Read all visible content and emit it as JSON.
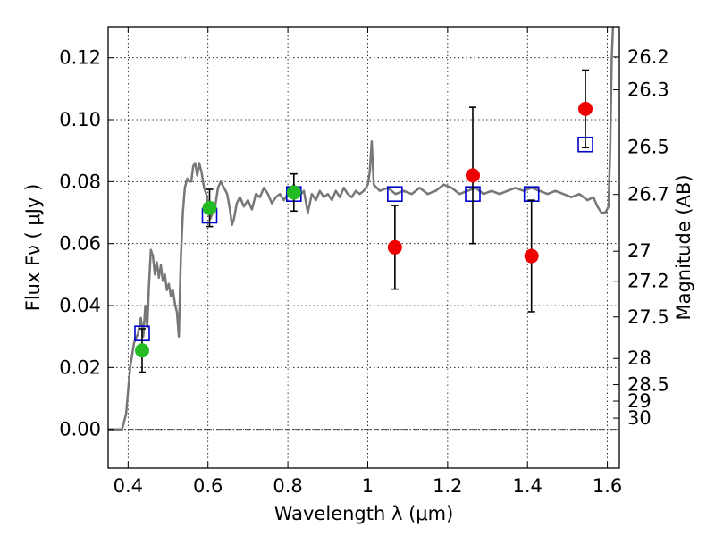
{
  "chart_data": {
    "type": "scatter",
    "xlabel": "Wavelength  λ (μm)",
    "ylabel_left": "Flux  Fν  ( μJy )",
    "ylabel_right": "Magnitude (AB)",
    "xlim": [
      0.35,
      1.63
    ],
    "ylim": [
      -0.0125,
      0.13
    ],
    "grid": true,
    "x_ticks": [
      {
        "value": 0.4,
        "label": "0.4"
      },
      {
        "value": 0.6,
        "label": "0.6"
      },
      {
        "value": 0.8,
        "label": "0.8"
      },
      {
        "value": 1.0,
        "label": "1"
      },
      {
        "value": 1.2,
        "label": "1.2"
      },
      {
        "value": 1.4,
        "label": "1.4"
      },
      {
        "value": 1.6,
        "label": "1.6"
      }
    ],
    "y_ticks": [
      {
        "value": 0.0,
        "label": "0.00"
      },
      {
        "value": 0.02,
        "label": "0.02"
      },
      {
        "value": 0.04,
        "label": "0.04"
      },
      {
        "value": 0.06,
        "label": "0.06"
      },
      {
        "value": 0.08,
        "label": "0.08"
      },
      {
        "value": 0.1,
        "label": "0.10"
      },
      {
        "value": 0.12,
        "label": "0.12"
      }
    ],
    "right_ticks": [
      {
        "mag": 26.2,
        "label": "26.2"
      },
      {
        "mag": 26.3,
        "label": "26.3"
      },
      {
        "mag": 26.5,
        "label": "26.5"
      },
      {
        "mag": 26.7,
        "label": "26.7"
      },
      {
        "mag": 27.0,
        "label": "27"
      },
      {
        "mag": 27.2,
        "label": "27.2"
      },
      {
        "mag": 27.5,
        "label": "27.5"
      },
      {
        "mag": 28.0,
        "label": "28"
      },
      {
        "mag": 28.5,
        "label": "28.5"
      },
      {
        "mag": 29.0,
        "label": "29"
      },
      {
        "mag": 30.0,
        "label": "30"
      }
    ],
    "series": [
      {
        "kind": "line",
        "color": "#777777",
        "points": [
          [
            0.35,
            0.0
          ],
          [
            0.385,
            0.0
          ],
          [
            0.395,
            0.005
          ],
          [
            0.405,
            0.02
          ],
          [
            0.415,
            0.028
          ],
          [
            0.425,
            0.031
          ],
          [
            0.432,
            0.036
          ],
          [
            0.438,
            0.03
          ],
          [
            0.443,
            0.04
          ],
          [
            0.448,
            0.033
          ],
          [
            0.452,
            0.046
          ],
          [
            0.457,
            0.058
          ],
          [
            0.462,
            0.056
          ],
          [
            0.467,
            0.05
          ],
          [
            0.472,
            0.054
          ],
          [
            0.477,
            0.049
          ],
          [
            0.482,
            0.053
          ],
          [
            0.487,
            0.048
          ],
          [
            0.492,
            0.05
          ],
          [
            0.497,
            0.045
          ],
          [
            0.502,
            0.047
          ],
          [
            0.507,
            0.043
          ],
          [
            0.512,
            0.045
          ],
          [
            0.518,
            0.04
          ],
          [
            0.522,
            0.038
          ],
          [
            0.527,
            0.03
          ],
          [
            0.532,
            0.055
          ],
          [
            0.537,
            0.07
          ],
          [
            0.542,
            0.078
          ],
          [
            0.548,
            0.081
          ],
          [
            0.553,
            0.08
          ],
          [
            0.558,
            0.08
          ],
          [
            0.563,
            0.085
          ],
          [
            0.568,
            0.086
          ],
          [
            0.573,
            0.082
          ],
          [
            0.578,
            0.086
          ],
          [
            0.584,
            0.083
          ],
          [
            0.59,
            0.078
          ],
          [
            0.596,
            0.076
          ],
          [
            0.6,
            0.073
          ],
          [
            0.606,
            0.068
          ],
          [
            0.612,
            0.07
          ],
          [
            0.618,
            0.072
          ],
          [
            0.625,
            0.078
          ],
          [
            0.632,
            0.08
          ],
          [
            0.64,
            0.078
          ],
          [
            0.648,
            0.076
          ],
          [
            0.655,
            0.071
          ],
          [
            0.66,
            0.066
          ],
          [
            0.665,
            0.068
          ],
          [
            0.672,
            0.073
          ],
          [
            0.68,
            0.075
          ],
          [
            0.69,
            0.072
          ],
          [
            0.7,
            0.074
          ],
          [
            0.71,
            0.071
          ],
          [
            0.72,
            0.076
          ],
          [
            0.73,
            0.075
          ],
          [
            0.74,
            0.078
          ],
          [
            0.75,
            0.076
          ],
          [
            0.76,
            0.073
          ],
          [
            0.77,
            0.075
          ],
          [
            0.78,
            0.076
          ],
          [
            0.79,
            0.074
          ],
          [
            0.8,
            0.076
          ],
          [
            0.815,
            0.079
          ],
          [
            0.825,
            0.075
          ],
          [
            0.84,
            0.077
          ],
          [
            0.85,
            0.07
          ],
          [
            0.86,
            0.076
          ],
          [
            0.87,
            0.074
          ],
          [
            0.88,
            0.077
          ],
          [
            0.89,
            0.075
          ],
          [
            0.9,
            0.076
          ],
          [
            0.91,
            0.074
          ],
          [
            0.92,
            0.077
          ],
          [
            0.93,
            0.075
          ],
          [
            0.94,
            0.078
          ],
          [
            0.95,
            0.076
          ],
          [
            0.96,
            0.075
          ],
          [
            0.97,
            0.077
          ],
          [
            0.98,
            0.076
          ],
          [
            0.99,
            0.077
          ],
          [
            1.0,
            0.079
          ],
          [
            1.005,
            0.083
          ],
          [
            1.01,
            0.093
          ],
          [
            1.015,
            0.079
          ],
          [
            1.03,
            0.077
          ],
          [
            1.05,
            0.078
          ],
          [
            1.07,
            0.076
          ],
          [
            1.09,
            0.077
          ],
          [
            1.11,
            0.076
          ],
          [
            1.13,
            0.078
          ],
          [
            1.15,
            0.076
          ],
          [
            1.17,
            0.077
          ],
          [
            1.19,
            0.079
          ],
          [
            1.21,
            0.078
          ],
          [
            1.23,
            0.076
          ],
          [
            1.25,
            0.077
          ],
          [
            1.27,
            0.078
          ],
          [
            1.29,
            0.076
          ],
          [
            1.31,
            0.077
          ],
          [
            1.33,
            0.076
          ],
          [
            1.35,
            0.077
          ],
          [
            1.37,
            0.078
          ],
          [
            1.39,
            0.077
          ],
          [
            1.41,
            0.078
          ],
          [
            1.43,
            0.077
          ],
          [
            1.45,
            0.076
          ],
          [
            1.47,
            0.077
          ],
          [
            1.49,
            0.076
          ],
          [
            1.51,
            0.075
          ],
          [
            1.53,
            0.076
          ],
          [
            1.55,
            0.074
          ],
          [
            1.565,
            0.075
          ],
          [
            1.575,
            0.072
          ],
          [
            1.585,
            0.07
          ],
          [
            1.595,
            0.07
          ],
          [
            1.603,
            0.072
          ],
          [
            1.607,
            0.09
          ],
          [
            1.611,
            0.12
          ],
          [
            1.614,
            0.13
          ]
        ]
      },
      {
        "kind": "open-squares",
        "color": "#0000cc",
        "points": [
          [
            0.435,
            0.031
          ],
          [
            0.604,
            0.069
          ],
          [
            0.815,
            0.076
          ],
          [
            1.068,
            0.076
          ],
          [
            1.263,
            0.076
          ],
          [
            1.41,
            0.076
          ],
          [
            1.545,
            0.092
          ]
        ]
      },
      {
        "kind": "filled-circles",
        "color": "#22bb22",
        "points": [
          {
            "x": 0.435,
            "y": 0.0255,
            "err": 0.007
          },
          {
            "x": 0.604,
            "y": 0.0715,
            "err": 0.006
          },
          {
            "x": 0.815,
            "y": 0.0765,
            "err": 0.006
          }
        ]
      },
      {
        "kind": "filled-circles",
        "color": "#ee0000",
        "points": [
          {
            "x": 1.068,
            "y": 0.0588,
            "err": 0.0135
          },
          {
            "x": 1.263,
            "y": 0.082,
            "err": 0.022
          },
          {
            "x": 1.41,
            "y": 0.056,
            "err": 0.018
          },
          {
            "x": 1.545,
            "y": 0.1035,
            "err": 0.0125
          }
        ]
      }
    ]
  }
}
